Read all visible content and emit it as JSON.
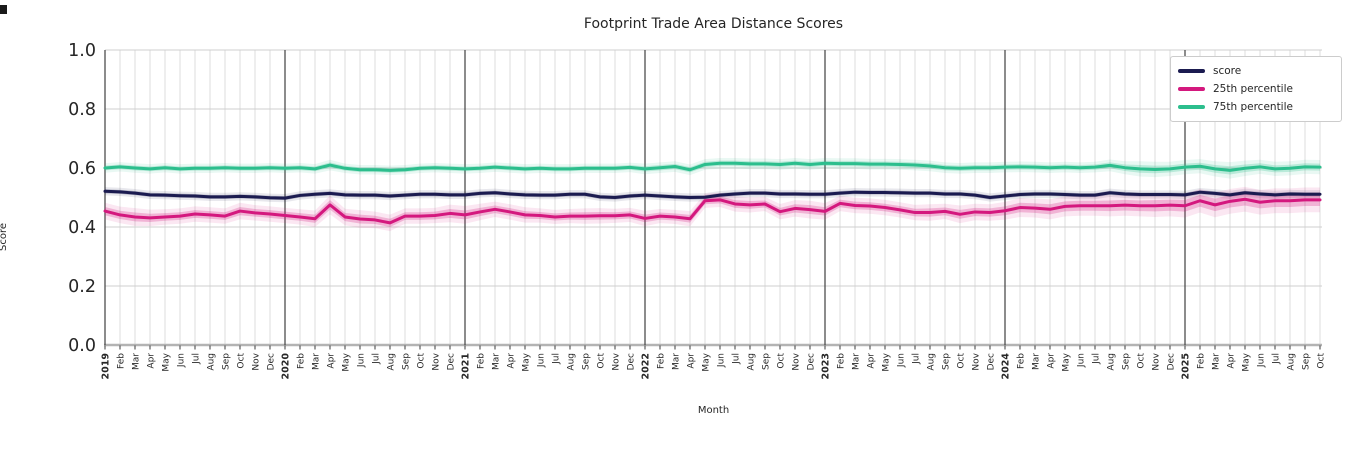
{
  "figure": {
    "title": "Footprint Trade Area Distance Scores",
    "xlabel": "Month",
    "ylabel": "Score"
  },
  "colors": {
    "score_line": "#1b1b50",
    "p25_line": "#d4187e",
    "p75_line": "#2cbe8d",
    "grid_minor": "#dcdcdc",
    "grid_major": "#cfcfcf",
    "baseline": "#b3b3b3",
    "year_line": "#404040",
    "spine": "#262626",
    "text": "#262626",
    "legend_border": "#cccccc"
  },
  "chart_data": {
    "type": "line",
    "title": "Footprint Trade Area Distance Scores",
    "xlabel": "Month",
    "ylabel": "Score",
    "ylim": [
      0.0,
      1.0
    ],
    "yticks": [
      0.0,
      0.2,
      0.4,
      0.6,
      0.8,
      1.0
    ],
    "grid": true,
    "legend_position": "upper right",
    "categories": [
      "2019",
      "Feb",
      "Mar",
      "Apr",
      "May",
      "Jun",
      "Jul",
      "Aug",
      "Sep",
      "Oct",
      "Nov",
      "Dec",
      "2020",
      "Feb",
      "Mar",
      "Apr",
      "May",
      "Jun",
      "Jul",
      "Aug",
      "Sep",
      "Oct",
      "Nov",
      "Dec",
      "2021",
      "Feb",
      "Mar",
      "Apr",
      "May",
      "Jun",
      "Jul",
      "Aug",
      "Sep",
      "Oct",
      "Nov",
      "Dec",
      "2022",
      "Feb",
      "Mar",
      "Apr",
      "May",
      "Jun",
      "Jul",
      "Aug",
      "Sep",
      "Oct",
      "Nov",
      "Dec",
      "2023",
      "Feb",
      "Mar",
      "Apr",
      "May",
      "Jun",
      "Jul",
      "Aug",
      "Sep",
      "Oct",
      "Nov",
      "Dec",
      "2024",
      "Feb",
      "Mar",
      "Apr",
      "May",
      "Jun",
      "Jul",
      "Aug",
      "Sep",
      "Oct",
      "Nov",
      "Dec",
      "2025",
      "Feb",
      "Mar",
      "Apr",
      "May",
      "Jun",
      "Jul",
      "Aug",
      "Sep",
      "Oct"
    ],
    "year_indices": [
      0,
      12,
      24,
      36,
      48,
      60,
      72
    ],
    "series": [
      {
        "name": "score",
        "color": "#1b1b50",
        "band": 0.007,
        "values": [
          0.521,
          0.519,
          0.515,
          0.509,
          0.508,
          0.506,
          0.505,
          0.502,
          0.502,
          0.504,
          0.502,
          0.499,
          0.498,
          0.507,
          0.511,
          0.514,
          0.509,
          0.508,
          0.508,
          0.505,
          0.508,
          0.511,
          0.511,
          0.509,
          0.509,
          0.514,
          0.516,
          0.512,
          0.509,
          0.508,
          0.508,
          0.511,
          0.511,
          0.502,
          0.5,
          0.505,
          0.508,
          0.505,
          0.502,
          0.5,
          0.501,
          0.508,
          0.512,
          0.515,
          0.515,
          0.512,
          0.512,
          0.511,
          0.511,
          0.515,
          0.518,
          0.517,
          0.517,
          0.516,
          0.515,
          0.515,
          0.512,
          0.512,
          0.508,
          0.5,
          0.505,
          0.51,
          0.512,
          0.512,
          0.51,
          0.508,
          0.508,
          0.516,
          0.512,
          0.51,
          0.51,
          0.51,
          0.509,
          0.518,
          0.514,
          0.509,
          0.516,
          0.512,
          0.509,
          0.512,
          0.511,
          0.511
        ]
      },
      {
        "name": "25th percentile",
        "color": "#d4187e",
        "band": [
          0.014,
          0.014,
          0.015,
          0.014,
          0.013,
          0.013,
          0.013,
          0.013,
          0.013,
          0.014,
          0.013,
          0.013,
          0.013,
          0.013,
          0.014,
          0.016,
          0.014,
          0.015,
          0.014,
          0.014,
          0.013,
          0.013,
          0.013,
          0.015,
          0.015,
          0.014,
          0.013,
          0.013,
          0.013,
          0.012,
          0.012,
          0.012,
          0.013,
          0.013,
          0.012,
          0.012,
          0.013,
          0.012,
          0.012,
          0.013,
          0.012,
          0.012,
          0.013,
          0.013,
          0.012,
          0.013,
          0.014,
          0.015,
          0.014,
          0.013,
          0.013,
          0.013,
          0.013,
          0.013,
          0.013,
          0.014,
          0.013,
          0.015,
          0.014,
          0.014,
          0.015,
          0.016,
          0.016,
          0.017,
          0.017,
          0.017,
          0.017,
          0.018,
          0.018,
          0.018,
          0.019,
          0.019,
          0.02,
          0.02,
          0.021,
          0.021,
          0.021,
          0.021,
          0.021,
          0.021,
          0.021,
          0.021
        ],
        "values": [
          0.454,
          0.441,
          0.434,
          0.431,
          0.434,
          0.437,
          0.444,
          0.441,
          0.437,
          0.454,
          0.448,
          0.444,
          0.439,
          0.434,
          0.428,
          0.475,
          0.434,
          0.427,
          0.424,
          0.414,
          0.437,
          0.437,
          0.439,
          0.446,
          0.441,
          0.451,
          0.46,
          0.451,
          0.441,
          0.439,
          0.434,
          0.437,
          0.437,
          0.438,
          0.438,
          0.441,
          0.429,
          0.437,
          0.434,
          0.428,
          0.489,
          0.492,
          0.478,
          0.475,
          0.478,
          0.452,
          0.463,
          0.459,
          0.453,
          0.48,
          0.473,
          0.471,
          0.466,
          0.458,
          0.449,
          0.449,
          0.453,
          0.443,
          0.451,
          0.449,
          0.455,
          0.466,
          0.464,
          0.46,
          0.47,
          0.472,
          0.472,
          0.472,
          0.474,
          0.472,
          0.472,
          0.474,
          0.472,
          0.489,
          0.475,
          0.487,
          0.494,
          0.484,
          0.489,
          0.489,
          0.492,
          0.492
        ]
      },
      {
        "name": "75th percentile",
        "color": "#2cbe8d",
        "band": [
          0.008,
          0.008,
          0.008,
          0.008,
          0.008,
          0.008,
          0.008,
          0.008,
          0.008,
          0.008,
          0.008,
          0.008,
          0.008,
          0.008,
          0.008,
          0.009,
          0.008,
          0.008,
          0.008,
          0.008,
          0.008,
          0.008,
          0.008,
          0.008,
          0.008,
          0.008,
          0.008,
          0.008,
          0.008,
          0.008,
          0.008,
          0.008,
          0.008,
          0.008,
          0.008,
          0.008,
          0.009,
          0.009,
          0.009,
          0.009,
          0.009,
          0.009,
          0.009,
          0.009,
          0.009,
          0.009,
          0.009,
          0.009,
          0.009,
          0.009,
          0.009,
          0.009,
          0.009,
          0.009,
          0.009,
          0.009,
          0.009,
          0.009,
          0.009,
          0.009,
          0.009,
          0.009,
          0.009,
          0.009,
          0.009,
          0.009,
          0.009,
          0.01,
          0.011,
          0.013,
          0.013,
          0.012,
          0.012,
          0.012,
          0.013,
          0.014,
          0.013,
          0.012,
          0.012,
          0.012,
          0.012,
          0.012
        ],
        "values": [
          0.6,
          0.604,
          0.6,
          0.597,
          0.601,
          0.597,
          0.599,
          0.599,
          0.601,
          0.599,
          0.599,
          0.601,
          0.599,
          0.601,
          0.597,
          0.61,
          0.599,
          0.594,
          0.594,
          0.592,
          0.594,
          0.599,
          0.601,
          0.599,
          0.597,
          0.599,
          0.603,
          0.6,
          0.597,
          0.599,
          0.597,
          0.597,
          0.599,
          0.599,
          0.599,
          0.602,
          0.597,
          0.601,
          0.605,
          0.594,
          0.612,
          0.616,
          0.616,
          0.614,
          0.614,
          0.612,
          0.616,
          0.612,
          0.616,
          0.615,
          0.615,
          0.613,
          0.613,
          0.612,
          0.61,
          0.607,
          0.601,
          0.599,
          0.601,
          0.601,
          0.603,
          0.604,
          0.603,
          0.601,
          0.603,
          0.601,
          0.603,
          0.609,
          0.601,
          0.597,
          0.595,
          0.597,
          0.603,
          0.606,
          0.597,
          0.592,
          0.599,
          0.604,
          0.597,
          0.599,
          0.604,
          0.603
        ]
      }
    ]
  }
}
